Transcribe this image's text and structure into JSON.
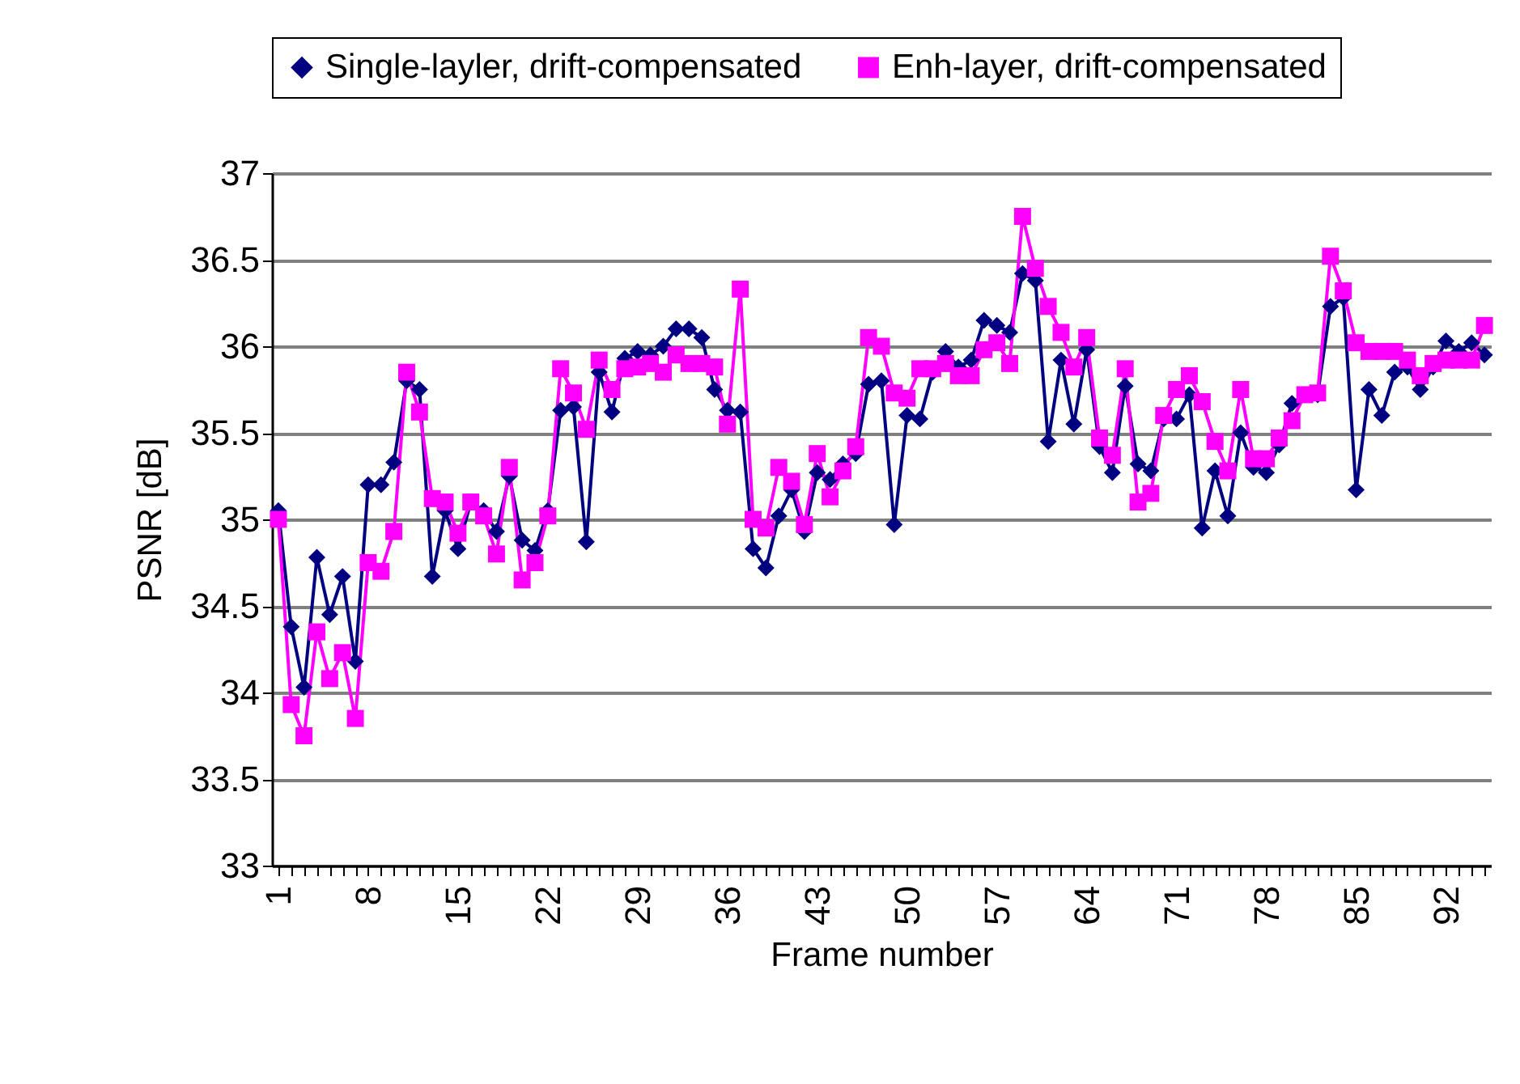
{
  "chart_data": {
    "type": "line",
    "xlabel": "Frame number",
    "ylabel": "PSNR [dB]",
    "categories": [
      "1",
      null,
      null,
      null,
      null,
      null,
      null,
      "8",
      null,
      null,
      null,
      null,
      null,
      null,
      "15",
      null,
      null,
      null,
      null,
      null,
      null,
      "22",
      null,
      null,
      null,
      null,
      null,
      null,
      "29",
      null,
      null,
      null,
      null,
      null,
      null,
      "36",
      null,
      null,
      null,
      null,
      null,
      null,
      "43",
      null,
      null,
      null,
      null,
      null,
      null,
      "50",
      null,
      null,
      null,
      null,
      null,
      null,
      "57",
      null,
      null,
      null,
      null,
      null,
      null,
      "64",
      null,
      null,
      null,
      null,
      null,
      null,
      "71",
      null,
      null,
      null,
      null,
      null,
      null,
      "78",
      null,
      null,
      null,
      null,
      null,
      null,
      "85",
      null,
      null,
      null,
      null,
      null,
      null,
      "92",
      null,
      null,
      null
    ],
    "ylim": [
      33,
      37
    ],
    "yticks": [
      33,
      33.5,
      34,
      34.5,
      35,
      35.5,
      36,
      36.5,
      37
    ],
    "grid": "y",
    "legend": "top",
    "series": [
      {
        "name": "Single-layler, drift-compensated",
        "color": "#000080",
        "marker": "diamond",
        "values": [
          35.05,
          34.38,
          34.03,
          34.78,
          34.45,
          34.67,
          34.18,
          35.2,
          35.2,
          35.33,
          35.8,
          35.75,
          34.67,
          35.05,
          34.83,
          35.1,
          35.05,
          34.93,
          35.25,
          34.88,
          34.82,
          35.05,
          35.63,
          35.65,
          34.87,
          35.85,
          35.62,
          35.93,
          35.97,
          35.95,
          36.0,
          36.1,
          36.1,
          36.05,
          35.75,
          35.63,
          35.62,
          34.83,
          34.72,
          35.02,
          35.17,
          34.93,
          35.27,
          35.23,
          35.32,
          35.38,
          35.78,
          35.8,
          34.97,
          35.6,
          35.58,
          35.85,
          35.97,
          35.88,
          35.92,
          36.15,
          36.12,
          36.08,
          36.42,
          36.38,
          35.45,
          35.92,
          35.55,
          35.98,
          35.42,
          35.27,
          35.77,
          35.32,
          35.28,
          35.58,
          35.58,
          35.72,
          34.95,
          35.28,
          35.02,
          35.5,
          35.3,
          35.27,
          35.43,
          35.67,
          35.72,
          35.72,
          36.23,
          36.28,
          35.17,
          35.75,
          35.6,
          35.85,
          35.88,
          35.75,
          35.88,
          36.03,
          35.97,
          36.02,
          35.95
        ]
      },
      {
        "name": "Enh-layer, drift-compensated",
        "color": "#ff00ff",
        "marker": "square",
        "values": [
          35.0,
          33.93,
          33.75,
          34.35,
          34.08,
          34.23,
          33.85,
          34.75,
          34.7,
          34.93,
          35.85,
          35.62,
          35.12,
          35.1,
          34.92,
          35.1,
          35.02,
          34.8,
          35.3,
          34.65,
          34.75,
          35.02,
          35.87,
          35.73,
          35.52,
          35.92,
          35.75,
          35.87,
          35.88,
          35.9,
          35.85,
          35.95,
          35.9,
          35.9,
          35.88,
          35.55,
          36.33,
          35.0,
          34.95,
          35.3,
          35.22,
          34.97,
          35.38,
          35.13,
          35.28,
          35.42,
          36.05,
          36.0,
          35.73,
          35.7,
          35.87,
          35.87,
          35.9,
          35.83,
          35.83,
          35.98,
          36.02,
          35.9,
          36.75,
          36.45,
          36.23,
          36.08,
          35.88,
          36.05,
          35.47,
          35.37,
          35.87,
          35.1,
          35.15,
          35.6,
          35.75,
          35.83,
          35.68,
          35.45,
          35.28,
          35.75,
          35.35,
          35.35,
          35.47,
          35.57,
          35.72,
          35.73,
          36.52,
          36.32,
          36.02,
          35.97,
          35.97,
          35.97,
          35.92,
          35.83,
          35.9,
          35.92,
          35.92,
          35.92,
          36.12
        ]
      }
    ]
  }
}
